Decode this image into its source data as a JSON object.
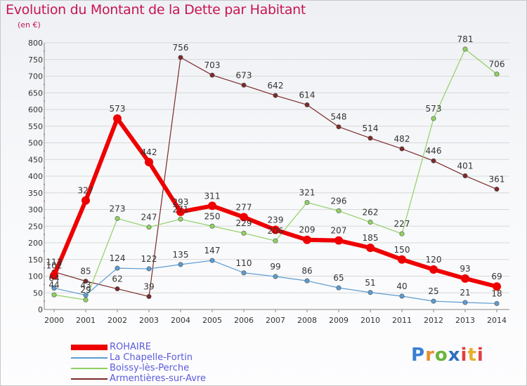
{
  "header": {
    "title": "Evolution du Montant de la Dette par Habitant",
    "unit": "(en €)"
  },
  "logo": {
    "text": "Proxiti"
  },
  "colors": {
    "ROHAIRE": "#ee0000",
    "La Chapelle-Fortin": "#5b9bd0",
    "Boissy-lès-Perche": "#8fd163",
    "Armentières-sur-Avre": "#7a2a2a",
    "text": "#333333",
    "grid": "#d8d8d8"
  },
  "chart_data": {
    "type": "line",
    "title": "Evolution du Montant de la Dette par Habitant",
    "ylabel": "(en €)",
    "xlabel": "",
    "x": [
      "2000",
      "2001",
      "2002",
      "2003",
      "2004",
      "2005",
      "2006",
      "2007",
      "2008",
      "2009",
      "2010",
      "2011",
      "2012",
      "2013",
      "2014"
    ],
    "ylim": [
      0,
      800
    ],
    "yticks": [
      0,
      50,
      100,
      150,
      200,
      250,
      300,
      350,
      400,
      450,
      500,
      550,
      600,
      650,
      700,
      750,
      800
    ],
    "grid": true,
    "legend_position": "bottom-left",
    "series": [
      {
        "name": "ROHAIRE",
        "values": [
          102,
          327,
          573,
          442,
          293,
          311,
          277,
          239,
          209,
          207,
          185,
          150,
          120,
          93,
          69
        ]
      },
      {
        "name": "La Chapelle-Fortin",
        "values": [
          64,
          43,
          124,
          122,
          135,
          147,
          110,
          99,
          86,
          65,
          51,
          40,
          25,
          21,
          18
        ]
      },
      {
        "name": "Boissy-lès-Perche",
        "values": [
          44,
          29,
          273,
          247,
          271,
          250,
          229,
          206,
          321,
          296,
          262,
          227,
          573,
          781,
          706
        ]
      },
      {
        "name": "Armentières-sur-Avre",
        "values": [
          null,
          null,
          null,
          null,
          756,
          703,
          673,
          642,
          614,
          548,
          514,
          482,
          446,
          401,
          361
        ],
        "segments": [
          {
            "x": [
              "2000",
              "2001",
              "2002",
              "2003"
            ],
            "values": [
              113,
              85,
              62,
              39
            ]
          },
          {
            "x": [
              "2003",
              "2004"
            ],
            "values": [
              39,
              756
            ]
          }
        ]
      }
    ],
    "data_labels": [
      {
        "series": "ROHAIRE",
        "labels": [
          "102",
          "327",
          "573",
          "442",
          "293",
          "311",
          "277",
          "239",
          "209",
          "207",
          "185",
          "150",
          "120",
          "93",
          "69"
        ]
      },
      {
        "series": "La Chapelle-Fortin",
        "labels": [
          "64",
          "43",
          "124",
          "122",
          "135",
          "147",
          "110",
          "99",
          "86",
          "65",
          "51",
          "40",
          "25",
          "21",
          "18"
        ]
      },
      {
        "series": "Boissy-lès-Perche",
        "labels": [
          "44",
          "29",
          "273",
          "247",
          "271",
          "250",
          "229",
          "206",
          "321",
          "296",
          "262",
          "227",
          "573",
          "781",
          "706"
        ]
      },
      {
        "series": "Armentières-sur-Avre",
        "labels": [
          "113",
          "85",
          "62",
          "39",
          "756",
          "703",
          "673",
          "642",
          "614",
          "548",
          "514",
          "482",
          "446",
          "401",
          "361"
        ]
      }
    ]
  }
}
